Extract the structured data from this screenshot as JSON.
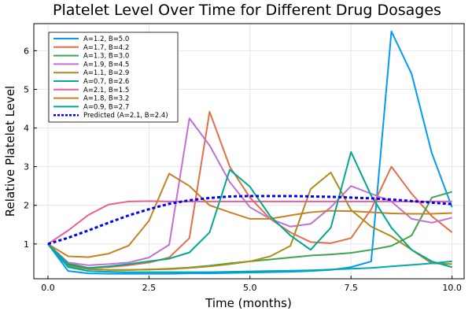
{
  "chart_data": {
    "type": "line",
    "title": "Platelet Level Over Time for Different Drug Dosages",
    "xlabel": "Time (months)",
    "ylabel": "Relative Platelet Level",
    "xlim": [
      -0.35,
      10.3
    ],
    "ylim": [
      0.1,
      6.7
    ],
    "xticks": [
      0,
      2.5,
      5,
      7.5,
      10
    ],
    "xtick_labels": [
      "0.0",
      "2.5",
      "5.0",
      "7.5",
      "10.0"
    ],
    "yticks": [
      1,
      2,
      3,
      4,
      5,
      6
    ],
    "ytick_labels": [
      "1",
      "2",
      "3",
      "4",
      "5",
      "6"
    ],
    "grid": true,
    "legend_position": "top-left",
    "x": [
      0,
      0.5,
      1,
      1.5,
      2,
      2.5,
      3,
      3.5,
      4,
      4.5,
      5,
      5.5,
      6,
      6.5,
      7,
      7.5,
      8,
      8.5,
      9,
      9.5,
      10
    ],
    "series": [
      {
        "name": "A=1.2, B=5.0",
        "color": "#009AFA",
        "values": [
          1.0,
          0.3,
          0.24,
          0.23,
          0.23,
          0.23,
          0.23,
          0.24,
          0.24,
          0.25,
          0.26,
          0.27,
          0.28,
          0.3,
          0.33,
          0.4,
          0.55,
          6.5,
          5.4,
          3.35,
          1.95
        ]
      },
      {
        "name": "A=1.7, B=4.2",
        "color": "#E36F47",
        "values": [
          1.0,
          0.5,
          0.38,
          0.4,
          0.45,
          0.52,
          0.65,
          1.15,
          4.42,
          3.0,
          2.2,
          1.65,
          1.3,
          1.05,
          1.02,
          1.15,
          1.9,
          3.0,
          2.3,
          1.72,
          1.3
        ]
      },
      {
        "name": "A=1.3, B=3.0",
        "color": "#3EA44E",
        "values": [
          1.0,
          0.45,
          0.35,
          0.33,
          0.33,
          0.34,
          0.36,
          0.39,
          0.44,
          0.5,
          0.55,
          0.6,
          0.65,
          0.7,
          0.73,
          0.77,
          0.85,
          0.95,
          1.22,
          2.2,
          2.35
        ]
      },
      {
        "name": "A=1.9, B=4.5",
        "color": "#C271D2",
        "values": [
          1.0,
          0.52,
          0.45,
          0.48,
          0.52,
          0.65,
          0.98,
          4.25,
          3.55,
          2.6,
          1.95,
          1.65,
          1.45,
          1.52,
          1.95,
          2.5,
          2.3,
          2.1,
          1.65,
          1.55,
          1.68
        ]
      },
      {
        "name": "A=1.1, B=2.9",
        "color": "#AC8D18",
        "values": [
          1.0,
          0.42,
          0.35,
          0.33,
          0.33,
          0.34,
          0.35,
          0.38,
          0.42,
          0.48,
          0.55,
          0.68,
          0.95,
          2.42,
          2.85,
          1.88,
          1.45,
          1.2,
          0.85,
          0.5,
          0.48
        ]
      },
      {
        "name": "A=0.7, B=2.6",
        "color": "#00A9AD",
        "values": [
          1.0,
          0.4,
          0.3,
          0.28,
          0.27,
          0.27,
          0.27,
          0.27,
          0.27,
          0.28,
          0.29,
          0.3,
          0.31,
          0.32,
          0.34,
          0.36,
          0.38,
          0.42,
          0.46,
          0.5,
          0.55
        ]
      },
      {
        "name": "A=2.1, B=1.5",
        "color": "#ED5D92",
        "values": [
          1.0,
          1.35,
          1.75,
          2.02,
          2.1,
          2.11,
          2.1,
          2.1,
          2.1,
          2.1,
          2.1,
          2.1,
          2.1,
          2.1,
          2.1,
          2.1,
          2.1,
          2.1,
          2.1,
          2.1,
          2.1
        ]
      },
      {
        "name": "A=1.8, B=3.2",
        "color": "#C68125",
        "values": [
          1.0,
          0.68,
          0.66,
          0.75,
          0.96,
          1.6,
          2.82,
          2.5,
          2.0,
          1.82,
          1.65,
          1.65,
          1.74,
          1.82,
          1.86,
          1.85,
          1.82,
          1.79,
          1.78,
          1.78,
          1.8
        ]
      },
      {
        "name": "A=0.9, B=2.7",
        "color": "#00A98D",
        "values": [
          1.0,
          0.48,
          0.38,
          0.42,
          0.48,
          0.55,
          0.62,
          0.78,
          1.3,
          2.92,
          2.48,
          1.72,
          1.22,
          0.85,
          1.42,
          3.38,
          2.25,
          1.42,
          0.85,
          0.55,
          0.4
        ]
      },
      {
        "name": "Predicted (A=2.1, B=2.4)",
        "color": "#0000FF",
        "dashed": true,
        "values": [
          1.0,
          1.16,
          1.35,
          1.55,
          1.74,
          1.9,
          2.04,
          2.13,
          2.19,
          2.23,
          2.24,
          2.24,
          2.24,
          2.23,
          2.22,
          2.2,
          2.18,
          2.15,
          2.11,
          2.07,
          2.03
        ]
      }
    ]
  }
}
